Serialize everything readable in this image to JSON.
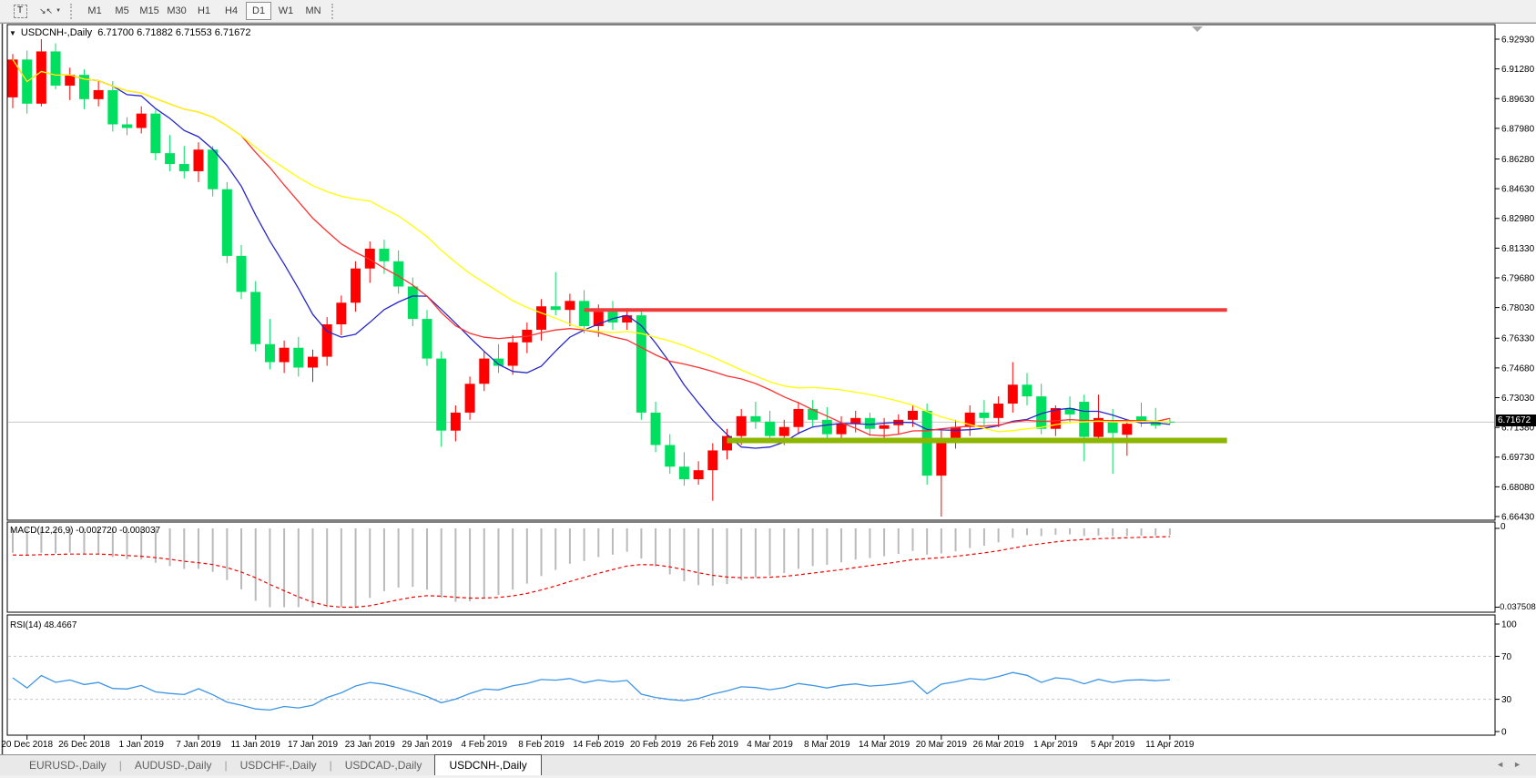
{
  "toolbar": {
    "icons": {
      "text_tool": "T",
      "arrange": "↘↖",
      "caret": "▼"
    },
    "timeframes": [
      "M1",
      "M5",
      "M15",
      "M30",
      "H1",
      "H4",
      "D1",
      "W1",
      "MN"
    ],
    "active_timeframe": "D1"
  },
  "window": {
    "collapse_icon": "▼",
    "symbol": "USDCNH-,Daily",
    "open": "6.71700",
    "high": "6.71882",
    "low": "6.71553",
    "close": "6.71672",
    "ohlc_line": "6.71700 6.71882 6.71553 6.71672"
  },
  "price_axis": {
    "labels": [
      "6.92930",
      "6.91280",
      "6.89630",
      "6.87980",
      "6.86280",
      "6.84630",
      "6.82980",
      "6.81330",
      "6.79680",
      "6.78030",
      "6.76330",
      "6.74680",
      "6.73030",
      "6.71380",
      "6.69730",
      "6.68080",
      "6.66430"
    ],
    "current_price": "6.71672"
  },
  "indicators": {
    "macd": {
      "label": "MACD(12,26,9)",
      "values": "-0.002720 -0.003037",
      "axis_top": "0",
      "axis_bottom": "-0.037508",
      "fast": 12,
      "slow": 26,
      "signal": 9
    },
    "rsi": {
      "label": "RSI(14)",
      "value": "48.4667",
      "axis": [
        "100",
        "70",
        "30",
        "0"
      ],
      "levels": [
        70,
        30
      ],
      "period": 14
    }
  },
  "time_axis": {
    "labels": [
      "20 Dec 2018",
      "26 Dec 2018",
      "1 Jan 2019",
      "7 Jan 2019",
      "11 Jan 2019",
      "17 Jan 2019",
      "23 Jan 2019",
      "29 Jan 2019",
      "4 Feb 2019",
      "8 Feb 2019",
      "14 Feb 2019",
      "20 Feb 2019",
      "26 Feb 2019",
      "4 Mar 2019",
      "8 Mar 2019",
      "14 Mar 2019",
      "20 Mar 2019",
      "26 Mar 2019",
      "1 Apr 2019",
      "5 Apr 2019",
      "11 Apr 2019"
    ]
  },
  "tabs": {
    "items": [
      {
        "label": "EURUSD-,Daily",
        "active": false
      },
      {
        "label": "AUDUSD-,Daily",
        "active": false
      },
      {
        "label": "USDCHF-,Daily",
        "active": false
      },
      {
        "label": "USDCAD-,Daily",
        "active": false
      },
      {
        "label": "USDCNH-,Daily",
        "active": true
      }
    ]
  },
  "scrollbar": {
    "left_arrow": "◄",
    "right_arrow": "►"
  },
  "colors": {
    "bull": "#ff0000",
    "bear": "#00df60",
    "ma_fast": "#2626cd",
    "ma_mid": "#ff3030",
    "ma_slow": "#ffff00",
    "macd_histogram": "#bababa",
    "macd_signal": "#f20000",
    "rsi_line": "#3e95e5",
    "level_dash": "#c6c6c6",
    "resistance": "#f03a3a",
    "support": "#8db600",
    "current_price_line": "#c8c8c8",
    "badge_bg": "#000000"
  },
  "chart_data": {
    "type": "candlestick",
    "symbol": "USDCNH",
    "timeframe": "Daily",
    "title": "USDCNH-,Daily",
    "y_range": [
      6.6643,
      6.9293
    ],
    "grid": false,
    "current_price": 6.71672,
    "candles": [
      [
        6.897,
        6.921,
        6.891,
        6.918
      ],
      [
        6.918,
        6.923,
        6.888,
        6.8935
      ],
      [
        6.8935,
        6.9293,
        6.892,
        6.9225
      ],
      [
        6.9225,
        6.927,
        6.9015,
        6.9035
      ],
      [
        6.9035,
        6.9135,
        6.8955,
        6.9095
      ],
      [
        6.9095,
        6.9125,
        6.8905,
        6.896
      ],
      [
        6.896,
        6.9065,
        6.892,
        6.901
      ],
      [
        6.901,
        6.906,
        6.878,
        6.882
      ],
      [
        6.882,
        6.886,
        6.876,
        6.88
      ],
      [
        6.88,
        6.892,
        6.877,
        6.888
      ],
      [
        6.888,
        6.89,
        6.862,
        6.866
      ],
      [
        6.866,
        6.876,
        6.856,
        6.86
      ],
      [
        6.86,
        6.87,
        6.852,
        6.856
      ],
      [
        6.856,
        6.872,
        6.85,
        6.868
      ],
      [
        6.868,
        6.87,
        6.842,
        6.846
      ],
      [
        6.846,
        6.85,
        6.805,
        6.809
      ],
      [
        6.809,
        6.815,
        6.785,
        6.789
      ],
      [
        6.789,
        6.795,
        6.756,
        6.76
      ],
      [
        6.76,
        6.774,
        6.746,
        6.75
      ],
      [
        6.75,
        6.762,
        6.744,
        6.758
      ],
      [
        6.758,
        6.764,
        6.742,
        6.747
      ],
      [
        6.747,
        6.757,
        6.739,
        6.753
      ],
      [
        6.753,
        6.775,
        6.748,
        6.771
      ],
      [
        6.771,
        6.787,
        6.765,
        6.783
      ],
      [
        6.783,
        6.806,
        6.778,
        6.802
      ],
      [
        6.802,
        6.817,
        6.794,
        6.813
      ],
      [
        6.813,
        6.818,
        6.799,
        6.806
      ],
      [
        6.806,
        6.812,
        6.788,
        6.792
      ],
      [
        6.792,
        6.797,
        6.77,
        6.774
      ],
      [
        6.774,
        6.779,
        6.748,
        6.752
      ],
      [
        6.752,
        6.756,
        6.703,
        6.712
      ],
      [
        6.712,
        6.726,
        6.706,
        6.722
      ],
      [
        6.722,
        6.742,
        6.718,
        6.738
      ],
      [
        6.738,
        6.756,
        6.734,
        6.752
      ],
      [
        6.752,
        6.76,
        6.744,
        6.748
      ],
      [
        6.748,
        6.765,
        6.743,
        6.761
      ],
      [
        6.761,
        6.772,
        6.755,
        6.768
      ],
      [
        6.768,
        6.785,
        6.762,
        6.781
      ],
      [
        6.781,
        6.8,
        6.776,
        6.779
      ],
      [
        6.779,
        6.788,
        6.77,
        6.784
      ],
      [
        6.784,
        6.79,
        6.766,
        6.77
      ],
      [
        6.77,
        6.782,
        6.764,
        6.778
      ],
      [
        6.778,
        6.784,
        6.768,
        6.772
      ],
      [
        6.772,
        6.78,
        6.768,
        6.776
      ],
      [
        6.776,
        6.779,
        6.718,
        6.722
      ],
      [
        6.722,
        6.728,
        6.7,
        6.704
      ],
      [
        6.704,
        6.71,
        6.688,
        6.692
      ],
      [
        6.692,
        6.7,
        6.6814,
        6.685
      ],
      [
        6.685,
        6.695,
        6.682,
        6.69
      ],
      [
        6.69,
        6.705,
        6.673,
        6.701
      ],
      [
        6.701,
        6.713,
        6.696,
        6.709
      ],
      [
        6.709,
        6.724,
        6.704,
        6.72
      ],
      [
        6.72,
        6.728,
        6.713,
        6.717
      ],
      [
        6.717,
        6.723,
        6.705,
        6.709
      ],
      [
        6.709,
        6.718,
        6.704,
        6.714
      ],
      [
        6.714,
        6.728,
        6.71,
        6.724
      ],
      [
        6.724,
        6.729,
        6.714,
        6.718
      ],
      [
        6.718,
        6.725,
        6.706,
        6.71
      ],
      [
        6.71,
        6.72,
        6.705,
        6.716
      ],
      [
        6.716,
        6.723,
        6.711,
        6.719
      ],
      [
        6.719,
        6.722,
        6.709,
        6.713
      ],
      [
        6.713,
        6.719,
        6.707,
        6.715
      ],
      [
        6.715,
        6.721,
        6.71,
        6.718
      ],
      [
        6.718,
        6.726,
        6.714,
        6.723
      ],
      [
        6.723,
        6.727,
        6.682,
        6.687
      ],
      [
        6.687,
        6.712,
        6.6643,
        6.708
      ],
      [
        6.708,
        6.718,
        6.702,
        6.714
      ],
      [
        6.714,
        6.726,
        6.709,
        6.722
      ],
      [
        6.722,
        6.729,
        6.715,
        6.719
      ],
      [
        6.719,
        6.731,
        6.714,
        6.727
      ],
      [
        6.727,
        6.75,
        6.722,
        6.7375
      ],
      [
        6.7375,
        6.744,
        6.726,
        6.731
      ],
      [
        6.731,
        6.738,
        6.71,
        6.713
      ],
      [
        6.713,
        6.726,
        6.709,
        6.7245
      ],
      [
        6.7245,
        6.731,
        6.716,
        6.721
      ],
      [
        6.728,
        6.732,
        6.695,
        6.7085
      ],
      [
        6.7085,
        6.732,
        6.706,
        6.719
      ],
      [
        6.7168,
        6.724,
        6.688,
        6.7107
      ],
      [
        6.7097,
        6.718,
        6.698,
        6.7158
      ],
      [
        6.7199,
        6.7275,
        6.714,
        6.7168
      ],
      [
        6.7173,
        6.7246,
        6.713,
        6.7148
      ],
      [
        6.717,
        6.71882,
        6.71553,
        6.71672
      ]
    ],
    "moving_averages": [
      {
        "name": "fast",
        "period": 8,
        "color": "#2626cd"
      },
      {
        "name": "mid",
        "period": 17,
        "color": "#ff3030"
      },
      {
        "name": "slow",
        "period": 26,
        "color": "#ffff00"
      }
    ],
    "hlines": [
      {
        "name": "resistance",
        "price": 6.779,
        "color": "#f03a3a",
        "stroke_width": 4,
        "from_index": 40,
        "to_index": 85
      },
      {
        "name": "support",
        "price": 6.7065,
        "color": "#8db600",
        "stroke_width": 6,
        "from_index": 50,
        "to_index": 85
      }
    ],
    "macd_range": [
      -0.0375,
      0.0005
    ],
    "rsi_range": [
      0,
      100
    ],
    "date_tick_every": 4
  }
}
